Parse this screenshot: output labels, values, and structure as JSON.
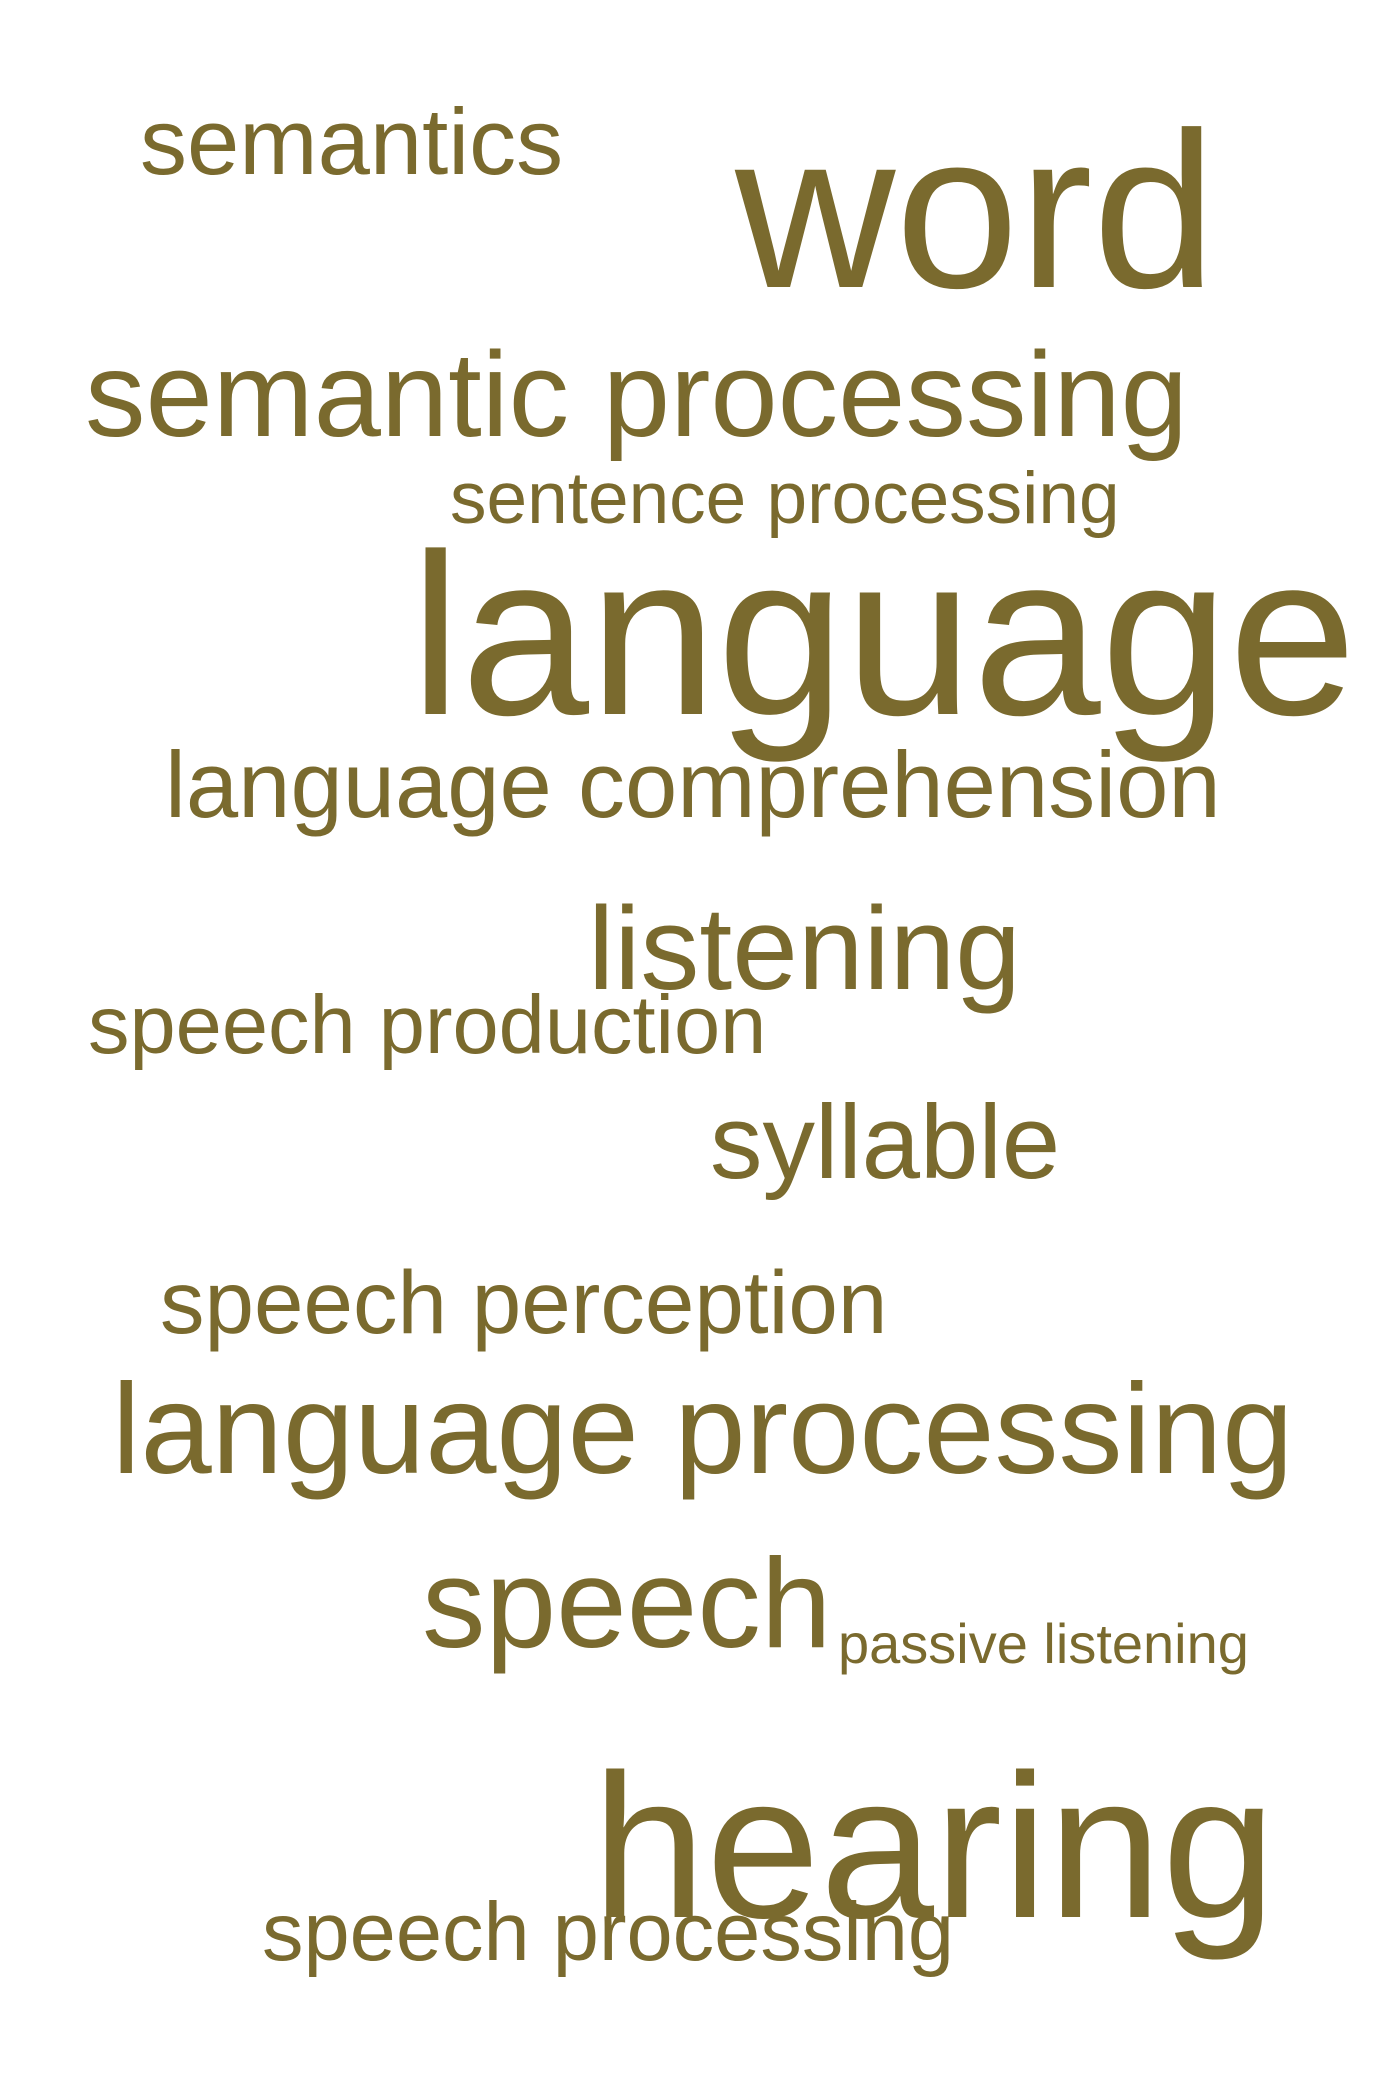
{
  "colors": {
    "word": "#7a6a2e",
    "background": "#ffffff"
  },
  "words": [
    {
      "id": "semantics",
      "text": "semantics"
    },
    {
      "id": "word",
      "text": "word"
    },
    {
      "id": "semantic-processing",
      "text": "semantic processing"
    },
    {
      "id": "sentence-processing",
      "text": "sentence processing"
    },
    {
      "id": "language",
      "text": "language"
    },
    {
      "id": "language-comprehension",
      "text": "language comprehension"
    },
    {
      "id": "listening",
      "text": "listening"
    },
    {
      "id": "speech-production",
      "text": "speech production"
    },
    {
      "id": "syllable",
      "text": "syllable"
    },
    {
      "id": "speech-perception",
      "text": "speech perception"
    },
    {
      "id": "language-processing",
      "text": "language processing"
    },
    {
      "id": "speech",
      "text": "speech"
    },
    {
      "id": "passive-listening",
      "text": "passive listening"
    },
    {
      "id": "hearing",
      "text": "hearing"
    },
    {
      "id": "speech-processing",
      "text": "speech processing"
    }
  ]
}
